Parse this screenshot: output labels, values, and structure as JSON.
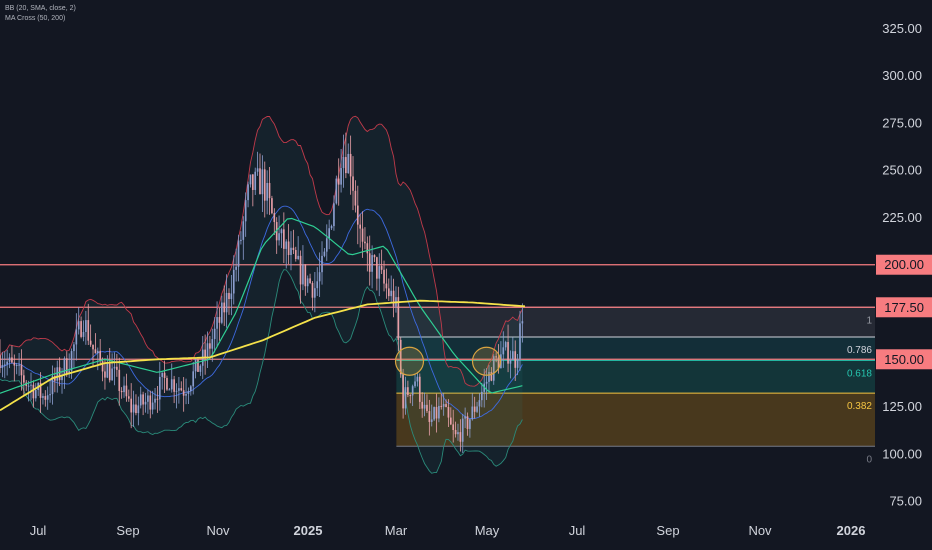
{
  "indicators": [
    "BB (20, SMA, close, 2)",
    "MA Cross (50, 200)"
  ],
  "colors": {
    "background": "#131722",
    "up": "#8c9fd0",
    "down": "#e8a0a8",
    "bb_band": "#c03a4a",
    "bb_basis": "#3d6ae0",
    "ma50": "#2fcf94",
    "ma200": "#f5e24a",
    "hline": "#f77c80",
    "axis_text": "#d1d4dc"
  },
  "chart_data": {
    "type": "candlestick",
    "x_ticks": [
      "Jul",
      "Sep",
      "Nov",
      "2025",
      "Mar",
      "May",
      "Jul",
      "Sep",
      "Nov",
      "2026"
    ],
    "y_ticks": [
      "325.00",
      "300.00",
      "275.00",
      "250.00",
      "225.00",
      "200.00",
      "177.50",
      "150.00",
      "125.00",
      "100.00",
      "75.00"
    ],
    "ylim": [
      65,
      340
    ],
    "horizontal_levels": [
      {
        "value": 200.0,
        "label": "200.00"
      },
      {
        "value": 177.5,
        "label": "177.50"
      },
      {
        "value": 150.0,
        "label": "150.00"
      }
    ],
    "fibonacci": {
      "high": 177.5,
      "low": 104.0,
      "levels": [
        {
          "ratio": 1,
          "label": "1",
          "color": "#9598a1"
        },
        {
          "ratio": 0.786,
          "label": "0.786",
          "color": "#d1d4dc"
        },
        {
          "ratio": 0.618,
          "label": "0.618",
          "color": "#26c6b0"
        },
        {
          "ratio": 0.382,
          "label": "0.382",
          "color": "#f5c542"
        },
        {
          "ratio": 0,
          "label": "0",
          "color": "#787b86"
        }
      ]
    },
    "price_path": [
      [
        0,
        152
      ],
      [
        0.03,
        138
      ],
      [
        0.05,
        130
      ],
      [
        0.08,
        150
      ],
      [
        0.095,
        172
      ],
      [
        0.11,
        150
      ],
      [
        0.13,
        142
      ],
      [
        0.15,
        124
      ],
      [
        0.17,
        128
      ],
      [
        0.19,
        140
      ],
      [
        0.21,
        134
      ],
      [
        0.235,
        152
      ],
      [
        0.255,
        175
      ],
      [
        0.27,
        200
      ],
      [
        0.285,
        240
      ],
      [
        0.3,
        245
      ],
      [
        0.315,
        218
      ],
      [
        0.33,
        205
      ],
      [
        0.345,
        195
      ],
      [
        0.36,
        188
      ],
      [
        0.37,
        200
      ],
      [
        0.38,
        230
      ],
      [
        0.39,
        260
      ],
      [
        0.4,
        255
      ],
      [
        0.415,
        205
      ],
      [
        0.43,
        198
      ],
      [
        0.44,
        188
      ],
      [
        0.452,
        180
      ],
      [
        0.46,
        128
      ],
      [
        0.475,
        140
      ],
      [
        0.49,
        115
      ],
      [
        0.505,
        125
      ],
      [
        0.52,
        108
      ],
      [
        0.535,
        117
      ],
      [
        0.55,
        132
      ],
      [
        0.565,
        148
      ],
      [
        0.58,
        154
      ],
      [
        0.59,
        150
      ],
      [
        0.597,
        175
      ]
    ],
    "ma200_path": [
      [
        0,
        123
      ],
      [
        0.06,
        140
      ],
      [
        0.12,
        148
      ],
      [
        0.18,
        150
      ],
      [
        0.24,
        151
      ],
      [
        0.3,
        160
      ],
      [
        0.36,
        172
      ],
      [
        0.42,
        179
      ],
      [
        0.48,
        181
      ],
      [
        0.54,
        180
      ],
      [
        0.6,
        178
      ]
    ],
    "ma50_path": [
      [
        0,
        132
      ],
      [
        0.06,
        142
      ],
      [
        0.12,
        150
      ],
      [
        0.18,
        143
      ],
      [
        0.24,
        150
      ],
      [
        0.27,
        175
      ],
      [
        0.3,
        210
      ],
      [
        0.33,
        225
      ],
      [
        0.36,
        220
      ],
      [
        0.4,
        205
      ],
      [
        0.44,
        210
      ],
      [
        0.48,
        178
      ],
      [
        0.52,
        152
      ],
      [
        0.56,
        132
      ],
      [
        0.597,
        136
      ]
    ]
  }
}
